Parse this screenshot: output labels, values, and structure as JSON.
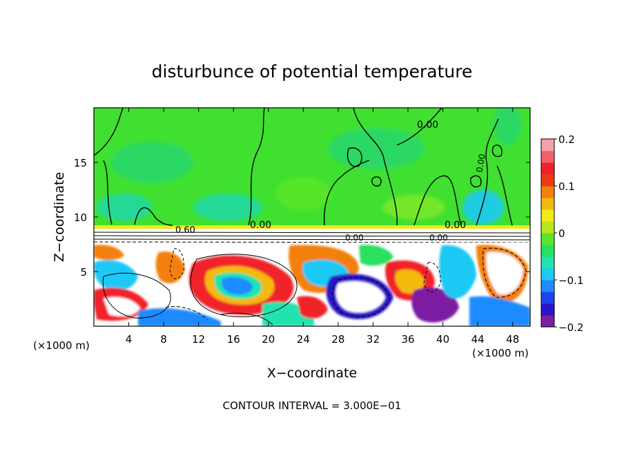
{
  "chart_data": {
    "type": "heatmap",
    "title": "disturbunce of potential temperature",
    "xlabel": "X−coordinate",
    "ylabel": "Z−coordinate",
    "x_unit_left": "(×1000 m)",
    "x_unit_right": "(×1000 m)",
    "xlim": [
      0,
      50
    ],
    "ylim": [
      0,
      20
    ],
    "x_ticks": [
      4,
      8,
      12,
      16,
      20,
      24,
      28,
      32,
      36,
      40,
      44,
      48
    ],
    "y_ticks": [
      5,
      10,
      15
    ],
    "colorbar": {
      "ticks": [
        0.2,
        0.1,
        0,
        -0.1,
        -0.2
      ],
      "tick_labels": [
        "0.2",
        "0.1",
        "0",
        "−0.1",
        "−0.2"
      ],
      "range": [
        -0.2,
        0.2
      ],
      "colors": [
        "#7b1fa2",
        "#2b15c8",
        "#1d45ee",
        "#1f8bff",
        "#1dc9f5",
        "#22e3b0",
        "#29e060",
        "#5ae62a",
        "#b6e61c",
        "#f0ea1a",
        "#f3b90c",
        "#f3800c",
        "#ee3a10",
        "#f0202a",
        "#f0606a",
        "#f5a0a8"
      ]
    },
    "contour_labels": [
      "0.00",
      "0.00",
      "0.00",
      "0.00",
      "0.00",
      "0.60",
      "0.00"
    ],
    "footer": "CONTOUR INTERVAL = 3.000E−01",
    "grid": false,
    "series": []
  }
}
